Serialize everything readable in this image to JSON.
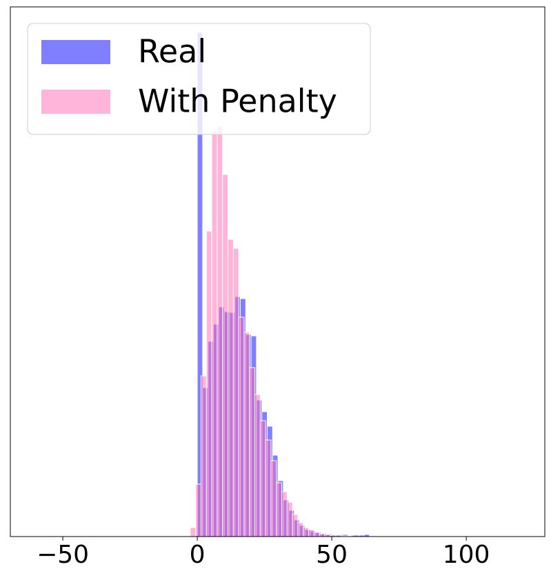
{
  "chart_data": {
    "type": "histogram",
    "xlim": [
      -69.5,
      129.2
    ],
    "xticks": [
      {
        "value": -50,
        "label": "−50"
      },
      0,
      50,
      100
    ],
    "ylim": [
      0,
      768
    ],
    "legend": "upper left",
    "series": [
      {
        "name": "Real",
        "color": "#0000ff",
        "bins": [
          0,
          2,
          4,
          6,
          8,
          10,
          12,
          14,
          16,
          18,
          20,
          22,
          24,
          26,
          28,
          30,
          32,
          34,
          36,
          38,
          40,
          42,
          44,
          46,
          48,
          50,
          52,
          54,
          56,
          58,
          60,
          62,
          64,
          66,
          68,
          70,
          72,
          74,
          76
        ],
        "values": [
          731,
          216,
          283,
          308,
          333,
          326,
          325,
          348,
          345,
          293,
          291,
          198,
          181,
          160,
          118,
          81,
          53,
          38,
          24,
          16,
          10,
          8,
          6,
          5,
          4,
          3,
          3,
          3,
          2,
          2,
          2,
          3,
          1,
          1,
          1,
          1,
          1,
          0
        ]
      },
      {
        "name": "With Penalty",
        "color": "#ff69b4",
        "bins": [
          -2.6,
          -0.6,
          1.4,
          3.4,
          5.4,
          7.4,
          9.4,
          11.4,
          13.4,
          15.4,
          17.4,
          19.4,
          21.4,
          23.4,
          25.4,
          27.4,
          29.4,
          31.4,
          33.4,
          35.4,
          37.4,
          39.4,
          41.4,
          43.4,
          45.4,
          47.4,
          49.4,
          51.4,
          53.4,
          55.4,
          57.4
        ],
        "values": [
          13,
          76,
          233,
          443,
          588,
          595,
          525,
          431,
          418,
          318,
          296,
          245,
          206,
          168,
          140,
          110,
          78,
          65,
          50,
          32,
          20,
          13,
          10,
          6,
          4,
          3,
          2,
          2,
          1,
          1
        ]
      }
    ]
  }
}
